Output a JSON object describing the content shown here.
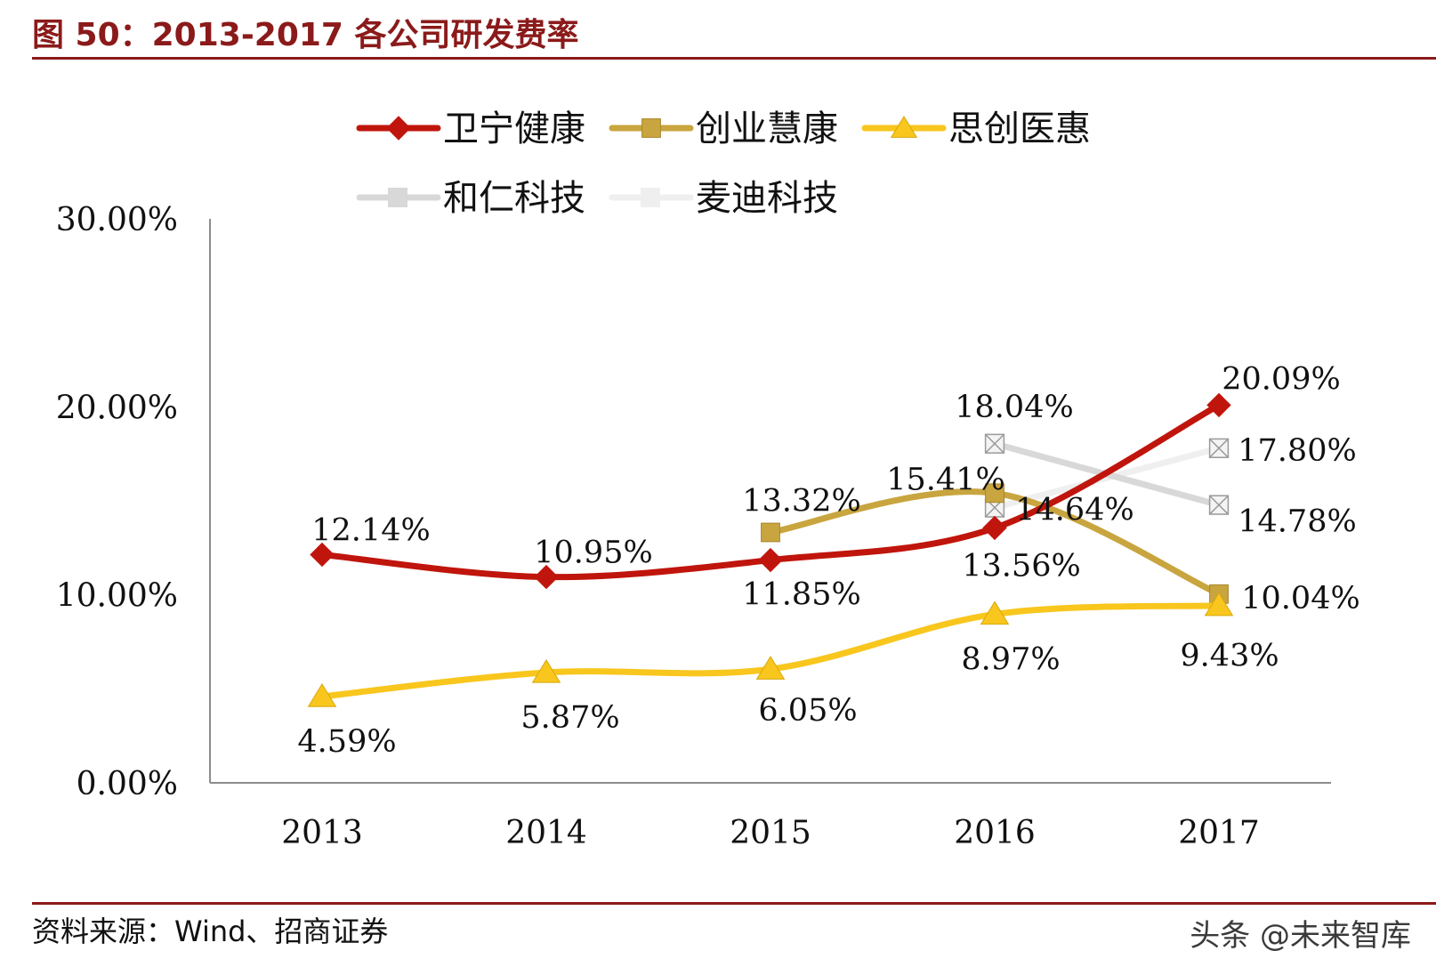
{
  "header": {
    "title": "图 50：2013-2017 各公司研发费率"
  },
  "footer": {
    "source": "资料来源：Wind、招商证券",
    "watermark": "头条 @未来智库"
  },
  "colors": {
    "wining": "#c0150c",
    "chuangye": "#c9a53f",
    "sichuang": "#f8c61d",
    "heren": "#d8d8d8",
    "maidi": "#efefef",
    "axis": "#8c8c8c",
    "title": "#8b1a1a"
  },
  "chart_data": {
    "type": "line",
    "categories": [
      "2013",
      "2014",
      "2015",
      "2016",
      "2017"
    ],
    "yticks": [
      "0.00%",
      "10.00%",
      "20.00%",
      "30.00%"
    ],
    "ylim": [
      0,
      30
    ],
    "grid": false,
    "legend_position": "top",
    "series": [
      {
        "name": "卫宁健康",
        "color_key": "wining",
        "marker": "diamond",
        "smooth": true,
        "values": [
          12.14,
          10.95,
          11.85,
          13.56,
          20.09
        ],
        "labels": [
          "12.14%",
          "10.95%",
          "11.85%",
          "13.56%",
          "20.09%"
        ]
      },
      {
        "name": "创业慧康",
        "color_key": "chuangye",
        "marker": "square",
        "smooth": true,
        "values": [
          null,
          null,
          13.32,
          15.41,
          10.04
        ],
        "labels": [
          "",
          "",
          "13.32%",
          "15.41%",
          "10.04%"
        ]
      },
      {
        "name": "思创医惠",
        "color_key": "sichuang",
        "marker": "triangle",
        "smooth": true,
        "values": [
          4.59,
          5.87,
          6.05,
          8.97,
          9.43
        ],
        "labels": [
          "4.59%",
          "5.87%",
          "6.05%",
          "8.97%",
          "9.43%"
        ]
      },
      {
        "name": "和仁科技",
        "color_key": "heren",
        "marker": "xsquare",
        "smooth": false,
        "values": [
          null,
          null,
          null,
          18.04,
          14.78
        ],
        "labels": [
          "",
          "",
          "",
          "18.04%",
          "14.78%"
        ]
      },
      {
        "name": "麦迪科技",
        "color_key": "maidi",
        "marker": "xsquare",
        "smooth": false,
        "values": [
          null,
          null,
          null,
          14.64,
          17.8
        ],
        "labels": [
          "",
          "",
          "",
          "14.64%",
          "17.80%"
        ]
      }
    ]
  }
}
